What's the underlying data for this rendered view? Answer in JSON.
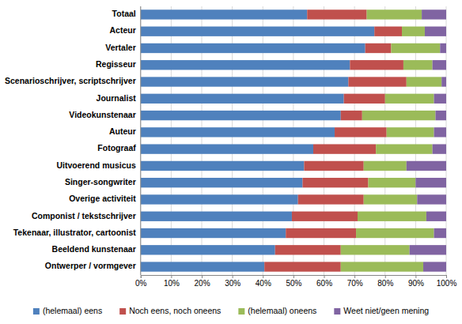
{
  "chart_data": {
    "type": "bar",
    "orientation": "horizontal",
    "stacked": true,
    "grid": true,
    "legend": "bottom",
    "categories": [
      "Totaal",
      "Acteur",
      "Vertaler",
      "Regisseur",
      "Scenarioschrijver, scriptschrijver",
      "Journalist",
      "Videokunstenaar",
      "Auteur",
      "Fotograaf",
      "Uitvoerend musicus",
      "Singer-songwriter",
      "Overige activiteit",
      "Componist / tekstschrijver",
      "Tekenaar, illustrator, cartoonist",
      "Beeldend kunstenaar",
      "Ontwerper / vormgever"
    ],
    "series": [
      {
        "name": "(helemaal) eens",
        "color": "#4f81bd",
        "values": [
          54.5,
          76.5,
          73.5,
          68.5,
          68,
          66.5,
          65.5,
          63.5,
          56.5,
          53.5,
          53,
          51.5,
          49.5,
          47.5,
          44,
          40.5
        ]
      },
      {
        "name": "Noch eens, noch oneens",
        "color": "#c0504d",
        "values": [
          19.5,
          9,
          8.5,
          17.5,
          19,
          13.5,
          7,
          17,
          20.5,
          19.5,
          21.5,
          21.5,
          21.5,
          23,
          21.5,
          25
        ]
      },
      {
        "name": "(helemaal) oneens",
        "color": "#9bbb59",
        "values": [
          18,
          7.5,
          16,
          9.5,
          11.5,
          16,
          24,
          15.5,
          18.5,
          14,
          15.5,
          17.5,
          22.5,
          25.5,
          22.5,
          27
        ]
      },
      {
        "name": "Weet niet/geen mening",
        "color": "#8064a2",
        "values": [
          8,
          7,
          2,
          4.5,
          1.5,
          4,
          3.5,
          4,
          4.5,
          13,
          10,
          9.5,
          6.5,
          4,
          12,
          7.5
        ]
      }
    ],
    "xlim": [
      0,
      100
    ],
    "xticks": [
      {
        "value": 0,
        "label": "0%"
      },
      {
        "value": 10,
        "label": "10%"
      },
      {
        "value": 20,
        "label": "20%"
      },
      {
        "value": 30,
        "label": "30%"
      },
      {
        "value": 40,
        "label": "40%"
      },
      {
        "value": 50,
        "label": "50%"
      },
      {
        "value": 60,
        "label": "60%"
      },
      {
        "value": 70,
        "label": "70%"
      },
      {
        "value": 80,
        "label": "80%"
      },
      {
        "value": 90,
        "label": "90%"
      },
      {
        "value": 100,
        "label": "100%"
      }
    ]
  }
}
